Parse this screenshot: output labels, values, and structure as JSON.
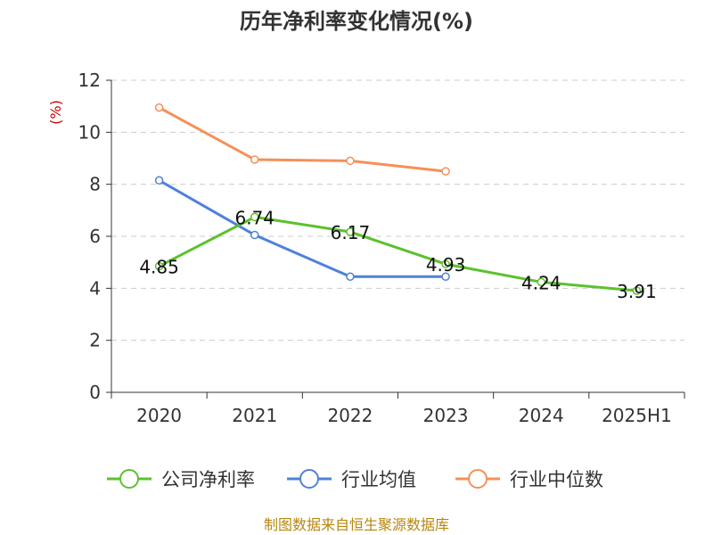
{
  "chart_data": {
    "type": "line",
    "title": "历年净利率变化情况(%)",
    "y_unit": "(%)",
    "categories": [
      "2020",
      "2021",
      "2022",
      "2023",
      "2024",
      "2025H1"
    ],
    "ylim": [
      0,
      12
    ],
    "y_ticks": [
      0,
      2,
      4,
      6,
      8,
      10,
      12
    ],
    "grid": true,
    "legend_position": "bottom",
    "series": [
      {
        "name": "公司净利率",
        "color": "#5cc12e",
        "values": [
          4.85,
          6.74,
          6.17,
          4.93,
          4.24,
          3.91
        ],
        "labels": [
          "4.85",
          "6.74",
          "6.17",
          "4.93",
          "4.24",
          "3.91"
        ]
      },
      {
        "name": "行业均值",
        "color": "#4f82d8",
        "values": [
          8.15,
          6.05,
          4.45,
          4.45,
          null,
          null
        ]
      },
      {
        "name": "行业中位数",
        "color": "#f5905a",
        "values": [
          10.95,
          8.95,
          8.9,
          8.5,
          null,
          null
        ]
      }
    ]
  },
  "source": "制图数据来自恒生聚源数据库"
}
